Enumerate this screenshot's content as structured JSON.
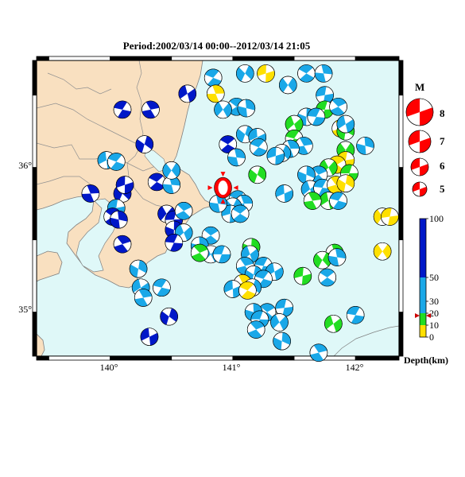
{
  "title": "Period:2002/03/14 00:00--2012/03/14 21:05",
  "map": {
    "lon_labels": [
      "140°",
      "141°",
      "142°"
    ],
    "lat_labels": [
      "36°",
      "35°"
    ],
    "colors": {
      "sea": "#dff8f8",
      "land": "#f9e0c0",
      "border": "#808080"
    }
  },
  "mainshock": {
    "lon": 140.92,
    "lat": 35.86,
    "color": "#ff0000"
  },
  "magnitude_legend": {
    "title": "M",
    "items": [
      {
        "label": "8"
      },
      {
        "label": "7"
      },
      {
        "label": "6"
      },
      {
        "label": "5"
      }
    ]
  },
  "depth_scale": {
    "title": "Depth(km)",
    "tick_labels": [
      "100",
      "50",
      "30",
      "20",
      "10",
      "0"
    ],
    "bands": [
      {
        "from": 0,
        "to": 10,
        "color": "#ffe000"
      },
      {
        "from": 10,
        "to": 20,
        "color": "#22dd22"
      },
      {
        "from": 20,
        "to": 50,
        "color": "#1aa8e8"
      },
      {
        "from": 50,
        "to": 100,
        "color": "#0018c8"
      }
    ],
    "marker_value": 18
  },
  "events": [
    {
      "lon": 140.63,
      "lat": 36.51,
      "c": "#0018c8"
    },
    {
      "lon": 140.1,
      "lat": 36.4,
      "c": "#0018c8"
    },
    {
      "lon": 140.33,
      "lat": 36.4,
      "c": "#0018c8"
    },
    {
      "lon": 140.28,
      "lat": 36.16,
      "c": "#0018c8"
    },
    {
      "lon": 139.97,
      "lat": 36.05,
      "c": "#1aa8e8"
    },
    {
      "lon": 140.05,
      "lat": 36.04,
      "c": "#1aa8e8"
    },
    {
      "lon": 139.84,
      "lat": 35.82,
      "c": "#0018c8"
    },
    {
      "lon": 140.1,
      "lat": 35.82,
      "c": "#0018c8"
    },
    {
      "lon": 140.12,
      "lat": 35.88,
      "c": "#0018c8"
    },
    {
      "lon": 140.38,
      "lat": 35.9,
      "c": "#0018c8"
    },
    {
      "lon": 140.5,
      "lat": 35.88,
      "c": "#1aa8e8"
    },
    {
      "lon": 140.5,
      "lat": 35.98,
      "c": "#1aa8e8"
    },
    {
      "lon": 140.05,
      "lat": 35.72,
      "c": "#1aa8e8"
    },
    {
      "lon": 140.02,
      "lat": 35.66,
      "c": "#0018c8"
    },
    {
      "lon": 140.07,
      "lat": 35.64,
      "c": "#0018c8"
    },
    {
      "lon": 140.46,
      "lat": 35.68,
      "c": "#0018c8"
    },
    {
      "lon": 140.52,
      "lat": 35.64,
      "c": "#0018c8"
    },
    {
      "lon": 140.6,
      "lat": 35.7,
      "c": "#1aa8e8"
    },
    {
      "lon": 140.52,
      "lat": 35.57,
      "c": "#0018c8"
    },
    {
      "lon": 140.6,
      "lat": 35.55,
      "c": "#1aa8e8"
    },
    {
      "lon": 140.52,
      "lat": 35.48,
      "c": "#0018c8"
    },
    {
      "lon": 140.1,
      "lat": 35.47,
      "c": "#0018c8"
    },
    {
      "lon": 140.23,
      "lat": 35.3,
      "c": "#1aa8e8"
    },
    {
      "lon": 140.25,
      "lat": 35.17,
      "c": "#1aa8e8"
    },
    {
      "lon": 140.42,
      "lat": 35.17,
      "c": "#1aa8e8"
    },
    {
      "lon": 140.27,
      "lat": 35.1,
      "c": "#1aa8e8"
    },
    {
      "lon": 140.48,
      "lat": 34.97,
      "c": "#0018c8"
    },
    {
      "lon": 140.32,
      "lat": 34.83,
      "c": "#0018c8"
    },
    {
      "lon": 140.84,
      "lat": 36.62,
      "c": "#1aa8e8"
    },
    {
      "lon": 140.86,
      "lat": 36.51,
      "c": "#ffe000"
    },
    {
      "lon": 141.1,
      "lat": 36.65,
      "c": "#1aa8e8"
    },
    {
      "lon": 141.27,
      "lat": 36.65,
      "c": "#ffe000"
    },
    {
      "lon": 141.6,
      "lat": 36.65,
      "c": "#1aa8e8"
    },
    {
      "lon": 141.74,
      "lat": 36.65,
      "c": "#1aa8e8"
    },
    {
      "lon": 141.45,
      "lat": 36.57,
      "c": "#1aa8e8"
    },
    {
      "lon": 141.75,
      "lat": 36.5,
      "c": "#1aa8e8"
    },
    {
      "lon": 141.03,
      "lat": 36.42,
      "c": "#1aa8e8"
    },
    {
      "lon": 141.11,
      "lat": 36.41,
      "c": "#1aa8e8"
    },
    {
      "lon": 140.92,
      "lat": 36.4,
      "c": "#1aa8e8"
    },
    {
      "lon": 141.75,
      "lat": 36.4,
      "c": "#22dd22"
    },
    {
      "lon": 141.86,
      "lat": 36.42,
      "c": "#1aa8e8"
    },
    {
      "lon": 141.6,
      "lat": 36.35,
      "c": "#1aa8e8"
    },
    {
      "lon": 141.5,
      "lat": 36.3,
      "c": "#22dd22"
    },
    {
      "lon": 141.68,
      "lat": 36.35,
      "c": "#1aa8e8"
    },
    {
      "lon": 141.88,
      "lat": 36.27,
      "c": "#ffe000"
    },
    {
      "lon": 141.92,
      "lat": 36.25,
      "c": "#22dd22"
    },
    {
      "lon": 141.92,
      "lat": 36.3,
      "c": "#1aa8e8"
    },
    {
      "lon": 141.5,
      "lat": 36.2,
      "c": "#22dd22"
    },
    {
      "lon": 141.58,
      "lat": 36.15,
      "c": "#1aa8e8"
    },
    {
      "lon": 141.1,
      "lat": 36.23,
      "c": "#1aa8e8"
    },
    {
      "lon": 141.2,
      "lat": 36.21,
      "c": "#1aa8e8"
    },
    {
      "lon": 141.21,
      "lat": 36.14,
      "c": "#1aa8e8"
    },
    {
      "lon": 141.47,
      "lat": 36.13,
      "c": "#1aa8e8"
    },
    {
      "lon": 141.4,
      "lat": 36.1,
      "c": "#1aa8e8"
    },
    {
      "lon": 141.35,
      "lat": 36.08,
      "c": "#1aa8e8"
    },
    {
      "lon": 140.96,
      "lat": 36.16,
      "c": "#0018c8"
    },
    {
      "lon": 141.03,
      "lat": 36.07,
      "c": "#1aa8e8"
    },
    {
      "lon": 141.92,
      "lat": 36.12,
      "c": "#22dd22"
    },
    {
      "lon": 141.92,
      "lat": 36.05,
      "c": "#ffe000"
    },
    {
      "lon": 141.85,
      "lat": 36.02,
      "c": "#ffe000"
    },
    {
      "lon": 142.08,
      "lat": 36.15,
      "c": "#1aa8e8"
    },
    {
      "lon": 141.78,
      "lat": 36.0,
      "c": "#22dd22"
    },
    {
      "lon": 141.95,
      "lat": 35.96,
      "c": "#22dd22"
    },
    {
      "lon": 141.7,
      "lat": 35.95,
      "c": "#1aa8e8"
    },
    {
      "lon": 141.6,
      "lat": 35.95,
      "c": "#1aa8e8"
    },
    {
      "lon": 141.63,
      "lat": 35.85,
      "c": "#1aa8e8"
    },
    {
      "lon": 141.73,
      "lat": 35.86,
      "c": "#1aa8e8"
    },
    {
      "lon": 141.84,
      "lat": 35.88,
      "c": "#ffe000"
    },
    {
      "lon": 141.92,
      "lat": 35.89,
      "c": "#ffe000"
    },
    {
      "lon": 141.78,
      "lat": 35.77,
      "c": "#22dd22"
    },
    {
      "lon": 141.86,
      "lat": 35.77,
      "c": "#1aa8e8"
    },
    {
      "lon": 141.65,
      "lat": 35.77,
      "c": "#22dd22"
    },
    {
      "lon": 141.2,
      "lat": 35.95,
      "c": "#22dd22"
    },
    {
      "lon": 141.42,
      "lat": 35.82,
      "c": "#1aa8e8"
    },
    {
      "lon": 141.04,
      "lat": 35.78,
      "c": "#1aa8e8"
    },
    {
      "lon": 141.09,
      "lat": 35.75,
      "c": "#1aa8e8"
    },
    {
      "lon": 141.0,
      "lat": 35.73,
      "c": "#1aa8e8"
    },
    {
      "lon": 140.98,
      "lat": 35.68,
      "c": "#1aa8e8"
    },
    {
      "lon": 141.06,
      "lat": 35.68,
      "c": "#1aa8e8"
    },
    {
      "lon": 140.88,
      "lat": 35.75,
      "c": "#1aa8e8"
    },
    {
      "lon": 142.22,
      "lat": 35.66,
      "c": "#ffe000"
    },
    {
      "lon": 142.28,
      "lat": 35.66,
      "c": "#ffe000"
    },
    {
      "lon": 140.82,
      "lat": 35.53,
      "c": "#1aa8e8"
    },
    {
      "lon": 140.73,
      "lat": 35.46,
      "c": "#1aa8e8"
    },
    {
      "lon": 140.82,
      "lat": 35.4,
      "c": "#1aa8e8"
    },
    {
      "lon": 140.91,
      "lat": 35.4,
      "c": "#1aa8e8"
    },
    {
      "lon": 140.73,
      "lat": 35.41,
      "c": "#22dd22"
    },
    {
      "lon": 141.15,
      "lat": 35.45,
      "c": "#22dd22"
    },
    {
      "lon": 141.14,
      "lat": 35.4,
      "c": "#1aa8e8"
    },
    {
      "lon": 141.25,
      "lat": 35.32,
      "c": "#1aa8e8"
    },
    {
      "lon": 141.1,
      "lat": 35.32,
      "c": "#1aa8e8"
    },
    {
      "lon": 141.17,
      "lat": 35.26,
      "c": "#1aa8e8"
    },
    {
      "lon": 141.34,
      "lat": 35.28,
      "c": "#1aa8e8"
    },
    {
      "lon": 141.25,
      "lat": 35.23,
      "c": "#1aa8e8"
    },
    {
      "lon": 141.08,
      "lat": 35.2,
      "c": "#ffe000"
    },
    {
      "lon": 141.16,
      "lat": 35.17,
      "c": "#1aa8e8"
    },
    {
      "lon": 141.0,
      "lat": 35.16,
      "c": "#1aa8e8"
    },
    {
      "lon": 141.12,
      "lat": 35.15,
      "c": "#ffe000"
    },
    {
      "lon": 141.83,
      "lat": 35.41,
      "c": "#22dd22"
    },
    {
      "lon": 141.73,
      "lat": 35.36,
      "c": "#22dd22"
    },
    {
      "lon": 141.57,
      "lat": 35.25,
      "c": "#22dd22"
    },
    {
      "lon": 141.77,
      "lat": 35.24,
      "c": "#1aa8e8"
    },
    {
      "lon": 141.85,
      "lat": 35.38,
      "c": "#1aa8e8"
    },
    {
      "lon": 142.22,
      "lat": 35.42,
      "c": "#ffe000"
    },
    {
      "lon": 141.42,
      "lat": 35.03,
      "c": "#1aa8e8"
    },
    {
      "lon": 141.28,
      "lat": 35.0,
      "c": "#1aa8e8"
    },
    {
      "lon": 141.17,
      "lat": 35.0,
      "c": "#1aa8e8"
    },
    {
      "lon": 141.38,
      "lat": 34.93,
      "c": "#1aa8e8"
    },
    {
      "lon": 141.22,
      "lat": 34.95,
      "c": "#1aa8e8"
    },
    {
      "lon": 141.19,
      "lat": 34.88,
      "c": "#1aa8e8"
    },
    {
      "lon": 141.4,
      "lat": 34.8,
      "c": "#1aa8e8"
    },
    {
      "lon": 141.82,
      "lat": 34.92,
      "c": "#22dd22"
    },
    {
      "lon": 142.0,
      "lat": 34.98,
      "c": "#1aa8e8"
    },
    {
      "lon": 141.7,
      "lat": 34.72,
      "c": "#1aa8e8"
    }
  ]
}
